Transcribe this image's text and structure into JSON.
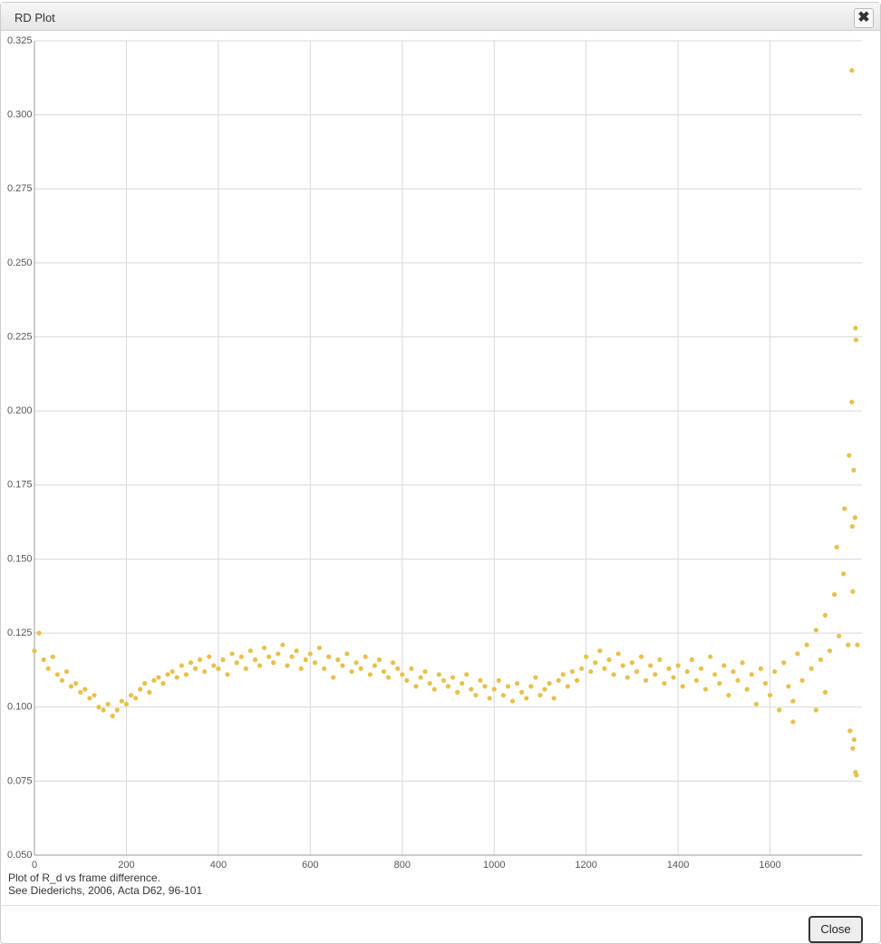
{
  "dialog_title": "RD Plot",
  "close_button": "Close",
  "notes": [
    "Plot of R_d vs frame difference.",
    "See Diederichs, 2006, Acta D62, 96-101"
  ],
  "chart_data": {
    "type": "scatter",
    "color": "#e8c04a",
    "grid": true,
    "xlim": [
      0,
      1800
    ],
    "ylim": [
      0.05,
      0.325
    ],
    "xticks": [
      0,
      200,
      400,
      600,
      800,
      1000,
      1200,
      1400,
      1600
    ],
    "yticks": [
      {
        "value": 0.05,
        "label": "0.050"
      },
      0.075,
      {
        "value": 0.1,
        "label": "0.100"
      },
      0.125,
      {
        "value": 0.15,
        "label": "0.150"
      },
      0.175,
      {
        "value": 0.2,
        "label": "0.200"
      },
      0.225,
      {
        "value": 0.25,
        "label": "0.250"
      },
      0.275,
      {
        "value": 0.3,
        "label": "0.300"
      },
      0.325
    ],
    "x": [
      0,
      10,
      20,
      30,
      40,
      50,
      60,
      70,
      80,
      90,
      100,
      110,
      120,
      130,
      140,
      150,
      160,
      170,
      180,
      190,
      200,
      210,
      220,
      230,
      240,
      250,
      260,
      270,
      280,
      290,
      300,
      310,
      320,
      330,
      340,
      350,
      360,
      370,
      380,
      390,
      400,
      410,
      420,
      430,
      440,
      450,
      460,
      470,
      480,
      490,
      500,
      510,
      520,
      530,
      540,
      550,
      560,
      570,
      580,
      590,
      600,
      610,
      620,
      630,
      640,
      650,
      660,
      670,
      680,
      690,
      700,
      710,
      720,
      730,
      740,
      750,
      760,
      770,
      780,
      790,
      800,
      810,
      820,
      830,
      840,
      850,
      860,
      870,
      880,
      890,
      900,
      910,
      920,
      930,
      940,
      950,
      960,
      970,
      980,
      990,
      1000,
      1010,
      1020,
      1030,
      1040,
      1050,
      1060,
      1070,
      1080,
      1090,
      1100,
      1110,
      1120,
      1130,
      1140,
      1150,
      1160,
      1170,
      1180,
      1190,
      1200,
      1210,
      1220,
      1230,
      1240,
      1250,
      1260,
      1270,
      1280,
      1290,
      1300,
      1310,
      1320,
      1330,
      1340,
      1350,
      1360,
      1370,
      1380,
      1390,
      1400,
      1410,
      1420,
      1430,
      1440,
      1450,
      1460,
      1470,
      1480,
      1490,
      1500,
      1510,
      1520,
      1530,
      1540,
      1550,
      1560,
      1570,
      1580,
      1590,
      1600,
      1610,
      1620,
      1630,
      1640,
      1650,
      1660,
      1670,
      1680,
      1690,
      1700,
      1710,
      1720,
      1730,
      1740,
      1750,
      1760,
      1770,
      1780,
      1790,
      1778,
      1786,
      1787,
      1778,
      1772,
      1782,
      1779,
      1785,
      1762,
      1745,
      1774,
      1783,
      1786,
      1788,
      1780,
      1650,
      1700,
      1720
    ],
    "values": [
      0.119,
      0.125,
      0.116,
      0.113,
      0.117,
      0.111,
      0.109,
      0.112,
      0.107,
      0.108,
      0.105,
      0.106,
      0.103,
      0.104,
      0.1,
      0.099,
      0.101,
      0.097,
      0.099,
      0.102,
      0.101,
      0.104,
      0.103,
      0.106,
      0.108,
      0.105,
      0.109,
      0.11,
      0.108,
      0.111,
      0.112,
      0.11,
      0.114,
      0.111,
      0.115,
      0.113,
      0.116,
      0.112,
      0.117,
      0.114,
      0.113,
      0.116,
      0.111,
      0.118,
      0.115,
      0.117,
      0.113,
      0.119,
      0.116,
      0.114,
      0.12,
      0.117,
      0.115,
      0.118,
      0.121,
      0.114,
      0.117,
      0.119,
      0.113,
      0.116,
      0.118,
      0.115,
      0.12,
      0.113,
      0.117,
      0.11,
      0.116,
      0.114,
      0.118,
      0.112,
      0.115,
      0.113,
      0.117,
      0.111,
      0.114,
      0.116,
      0.112,
      0.11,
      0.115,
      0.113,
      0.111,
      0.109,
      0.113,
      0.107,
      0.11,
      0.112,
      0.108,
      0.106,
      0.111,
      0.109,
      0.107,
      0.11,
      0.105,
      0.108,
      0.111,
      0.106,
      0.104,
      0.109,
      0.107,
      0.103,
      0.106,
      0.109,
      0.104,
      0.107,
      0.102,
      0.108,
      0.105,
      0.103,
      0.107,
      0.11,
      0.104,
      0.106,
      0.108,
      0.103,
      0.109,
      0.111,
      0.107,
      0.112,
      0.109,
      0.113,
      0.117,
      0.112,
      0.115,
      0.119,
      0.113,
      0.116,
      0.111,
      0.118,
      0.114,
      0.11,
      0.115,
      0.112,
      0.117,
      0.109,
      0.114,
      0.111,
      0.116,
      0.108,
      0.113,
      0.11,
      0.114,
      0.107,
      0.112,
      0.116,
      0.109,
      0.113,
      0.106,
      0.117,
      0.111,
      0.108,
      0.114,
      0.104,
      0.112,
      0.109,
      0.115,
      0.106,
      0.111,
      0.101,
      0.113,
      0.108,
      0.104,
      0.112,
      0.099,
      0.115,
      0.107,
      0.102,
      0.118,
      0.109,
      0.121,
      0.113,
      0.126,
      0.116,
      0.131,
      0.119,
      0.138,
      0.124,
      0.145,
      0.121,
      0.139,
      0.121,
      0.315,
      0.228,
      0.224,
      0.203,
      0.185,
      0.18,
      0.161,
      0.164,
      0.167,
      0.154,
      0.092,
      0.089,
      0.078,
      0.077,
      0.086,
      0.095,
      0.099,
      0.105
    ]
  }
}
